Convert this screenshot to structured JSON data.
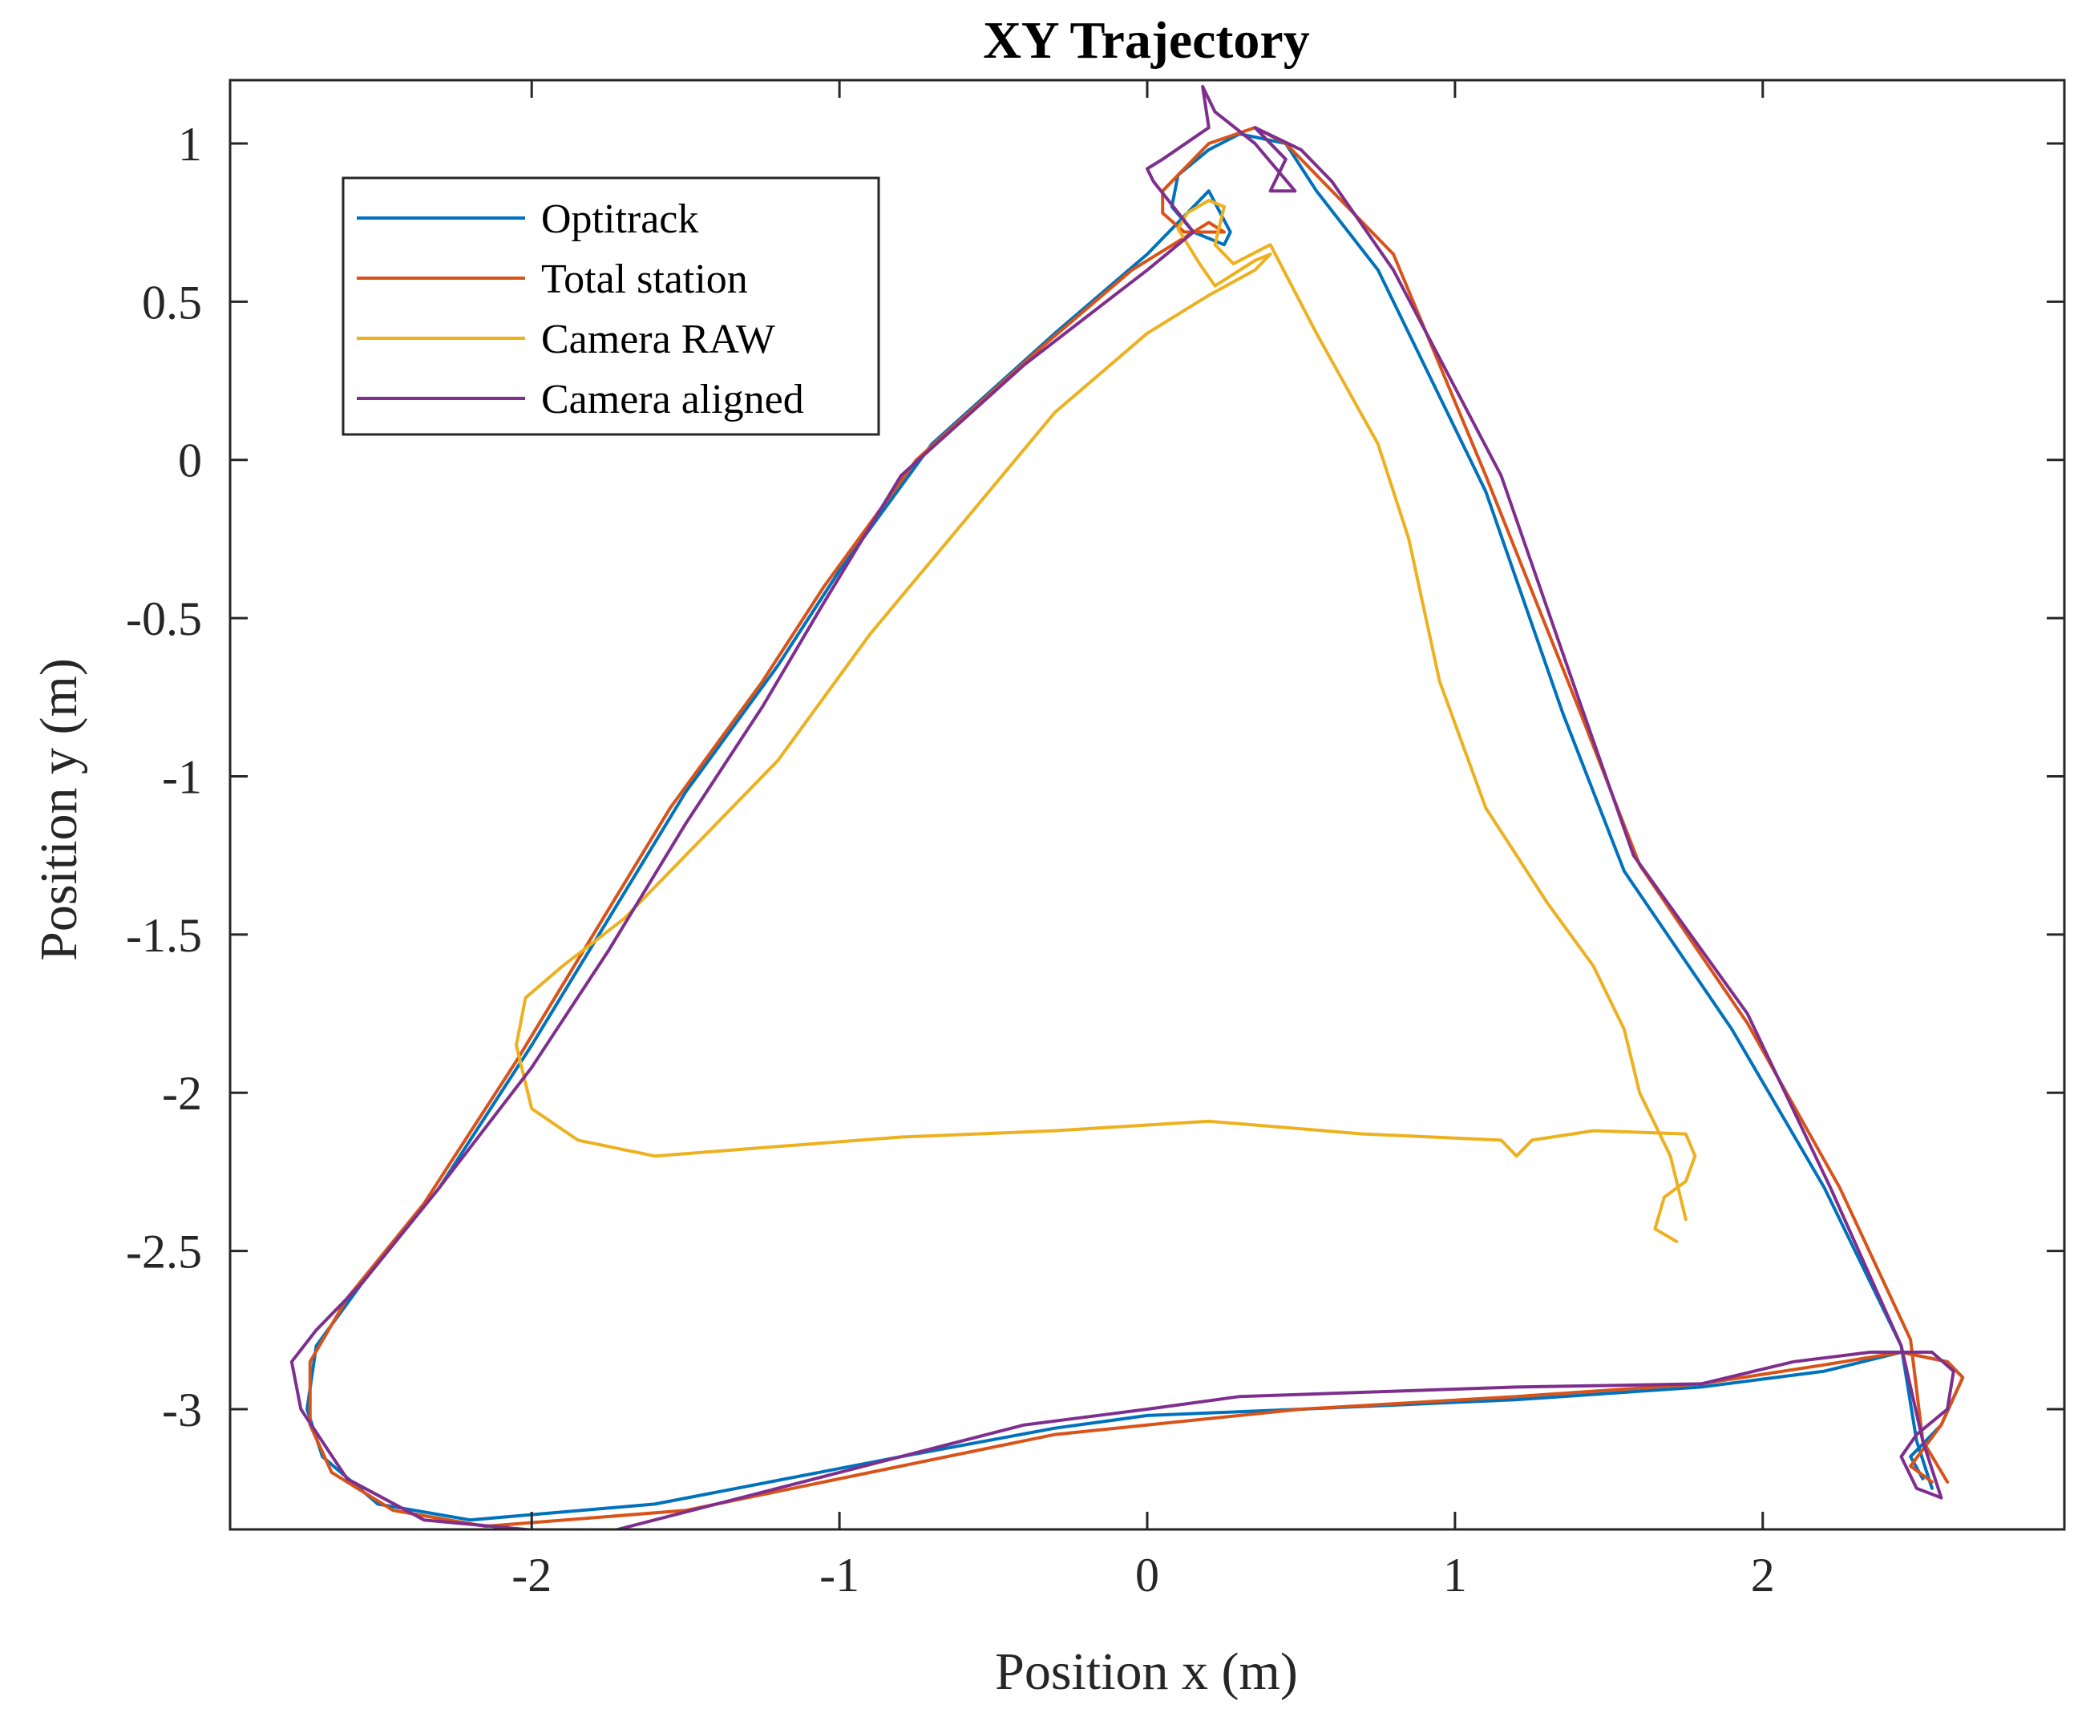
{
  "chart_data": {
    "type": "line",
    "title": "XY Trajectory",
    "xlabel": "Position x (m)",
    "ylabel": "Position y (m)",
    "xlim": [
      -2.98,
      2.98
    ],
    "ylim": [
      -3.38,
      1.2
    ],
    "xticks": [
      -2,
      -1,
      0,
      1,
      2
    ],
    "xtick_labels": [
      "-2",
      "-1",
      "0",
      "1",
      "2"
    ],
    "yticks": [
      1,
      0.5,
      0,
      -0.5,
      -1,
      -1.5,
      -2,
      -2.5,
      -3
    ],
    "ytick_labels": [
      "1",
      "0.5",
      "0",
      "-0.5",
      "-1",
      "-1.5",
      "-2",
      "-2.5",
      "-3"
    ],
    "grid": false,
    "legend_position": "top-left",
    "series": [
      {
        "name": "Optitrack",
        "color": "#0072BD",
        "x": [
          2.55,
          2.5,
          2.45,
          2.2,
          1.9,
          1.55,
          1.35,
          1.1,
          0.75,
          0.55,
          0.45,
          0.3,
          0.2,
          0.1,
          0.08,
          0.15,
          0.25,
          0.27,
          0.2,
          0.0,
          -0.3,
          -0.7,
          -1.0,
          -1.2,
          -1.5,
          -1.75,
          -2.0,
          -2.3,
          -2.55,
          -2.7,
          -2.73,
          -2.68,
          -2.5,
          -2.2,
          -1.6,
          -0.8,
          -0.3,
          0.0,
          0.5,
          1.2,
          1.8,
          2.2,
          2.45,
          2.6,
          2.65,
          2.58,
          2.48,
          2.52
        ],
        "y": [
          -3.25,
          -3.1,
          -2.8,
          -2.3,
          -1.8,
          -1.3,
          -0.8,
          -0.1,
          0.6,
          0.85,
          1.0,
          1.03,
          0.98,
          0.9,
          0.8,
          0.72,
          0.68,
          0.72,
          0.85,
          0.65,
          0.4,
          0.05,
          -0.35,
          -0.65,
          -1.05,
          -1.45,
          -1.85,
          -2.3,
          -2.6,
          -2.8,
          -3.0,
          -3.15,
          -3.3,
          -3.35,
          -3.3,
          -3.15,
          -3.06,
          -3.02,
          -3.0,
          -2.97,
          -2.93,
          -2.88,
          -2.82,
          -2.85,
          -2.9,
          -3.05,
          -3.15,
          -3.22
        ]
      },
      {
        "name": "Total station",
        "color": "#D95319",
        "x": [
          2.6,
          2.52,
          2.48,
          2.25,
          1.95,
          1.6,
          1.4,
          1.1,
          0.8,
          0.55,
          0.45,
          0.35,
          0.2,
          0.05,
          0.05,
          0.12,
          0.25,
          0.2,
          -0.05,
          -0.35,
          -0.75,
          -1.05,
          -1.25,
          -1.55,
          -1.8,
          -2.05,
          -2.35,
          -2.6,
          -2.72,
          -2.72,
          -2.65,
          -2.45,
          -2.15,
          -1.5,
          -0.8,
          -0.3,
          0.0,
          0.5,
          1.2,
          1.8,
          2.2,
          2.45,
          2.6,
          2.65,
          2.58,
          2.48,
          2.55
        ],
        "y": [
          -3.23,
          -3.1,
          -2.78,
          -2.3,
          -1.78,
          -1.28,
          -0.78,
          -0.05,
          0.65,
          0.9,
          1.0,
          1.05,
          1.0,
          0.85,
          0.78,
          0.72,
          0.72,
          0.75,
          0.6,
          0.35,
          0.0,
          -0.4,
          -0.7,
          -1.1,
          -1.5,
          -1.9,
          -2.35,
          -2.65,
          -2.85,
          -3.05,
          -3.2,
          -3.32,
          -3.37,
          -3.32,
          -3.18,
          -3.08,
          -3.05,
          -3.0,
          -2.96,
          -2.92,
          -2.86,
          -2.82,
          -2.85,
          -2.9,
          -3.05,
          -3.18,
          -3.23
        ]
      },
      {
        "name": "Camera RAW",
        "color": "#EDB120",
        "x": [
          1.72,
          1.65,
          1.68,
          1.75,
          1.78,
          1.75,
          1.45,
          1.25,
          1.2,
          1.15,
          0.7,
          0.2,
          -0.3,
          -0.8,
          -1.2,
          -1.6,
          -1.85,
          -2.0,
          -2.05,
          -2.02,
          -1.9,
          -1.7,
          -1.55,
          -1.2,
          -0.9,
          -0.6,
          -0.3,
          0.0,
          0.2,
          0.35,
          0.4,
          0.35,
          0.22,
          0.17,
          0.1,
          0.13,
          0.2,
          0.25,
          0.22,
          0.28,
          0.38,
          0.4,
          0.55,
          0.75,
          0.85,
          0.95,
          1.1,
          1.3,
          1.45,
          1.55,
          1.6,
          1.7,
          1.75
        ],
        "y": [
          -2.47,
          -2.43,
          -2.33,
          -2.28,
          -2.2,
          -2.13,
          -2.12,
          -2.15,
          -2.2,
          -2.15,
          -2.13,
          -2.09,
          -2.12,
          -2.14,
          -2.17,
          -2.2,
          -2.15,
          -2.05,
          -1.85,
          -1.7,
          -1.6,
          -1.45,
          -1.3,
          -0.95,
          -0.55,
          -0.2,
          0.15,
          0.4,
          0.52,
          0.6,
          0.65,
          0.63,
          0.55,
          0.62,
          0.73,
          0.78,
          0.82,
          0.8,
          0.68,
          0.62,
          0.67,
          0.68,
          0.4,
          0.05,
          -0.25,
          -0.7,
          -1.1,
          -1.4,
          -1.6,
          -1.8,
          -2.0,
          -2.2,
          -2.4
        ]
      },
      {
        "name": "Camera aligned",
        "color": "#7E2F8E",
        "x": [
          2.58,
          2.52,
          2.45,
          2.22,
          1.95,
          1.58,
          1.4,
          1.15,
          0.8,
          0.6,
          0.5,
          0.35,
          0.45,
          0.4,
          0.48,
          0.35,
          0.22,
          0.18,
          0.2,
          0.05,
          0.0,
          0.02,
          0.15,
          0.0,
          -0.4,
          -0.8,
          -1.05,
          -1.25,
          -1.5,
          -1.75,
          -2.0,
          -2.3,
          -2.55,
          -2.7,
          -2.78,
          -2.75,
          -2.6,
          -2.35,
          -1.8,
          -1.0,
          -0.4,
          0.0,
          0.3,
          0.6,
          1.2,
          1.8,
          2.1,
          2.35,
          2.55,
          2.62,
          2.6,
          2.5,
          2.45,
          2.5,
          2.58
        ],
        "y": [
          -3.28,
          -3.1,
          -2.8,
          -2.3,
          -1.75,
          -1.25,
          -0.75,
          -0.05,
          0.6,
          0.88,
          0.98,
          1.05,
          0.95,
          0.85,
          0.85,
          1.0,
          1.1,
          1.18,
          1.05,
          0.95,
          0.92,
          0.88,
          0.72,
          0.6,
          0.3,
          -0.05,
          -0.45,
          -0.78,
          -1.15,
          -1.55,
          -1.92,
          -2.3,
          -2.6,
          -2.75,
          -2.85,
          -3.0,
          -3.22,
          -3.35,
          -3.4,
          -3.2,
          -3.05,
          -3.0,
          -2.96,
          -2.95,
          -2.93,
          -2.92,
          -2.85,
          -2.82,
          -2.82,
          -2.88,
          -3.0,
          -3.08,
          -3.15,
          -3.25,
          -3.28
        ]
      }
    ]
  }
}
